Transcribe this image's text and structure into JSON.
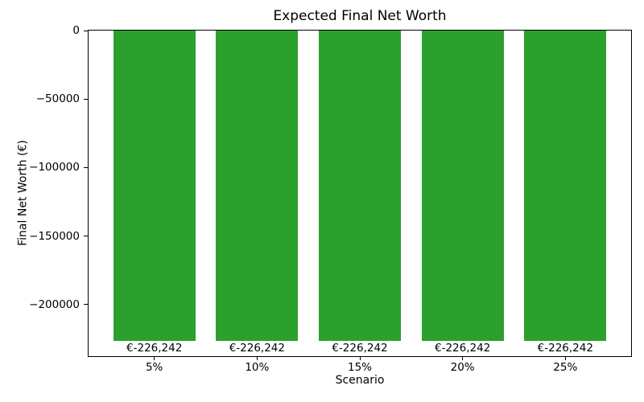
{
  "chart_data": {
    "type": "bar",
    "title": "Expected Final Net Worth",
    "xlabel": "Scenario",
    "ylabel": "Final Net Worth (€)",
    "categories": [
      "5%",
      "10%",
      "15%",
      "20%",
      "25%"
    ],
    "values": [
      -226242,
      -226242,
      -226242,
      -226242,
      -226242
    ],
    "bar_labels": [
      "€-226,242",
      "€-226,242",
      "€-226,242",
      "€-226,242",
      "€-226,242"
    ],
    "bar_color": "#2ca02c",
    "yticks": [
      0,
      -50000,
      -100000,
      -150000,
      -200000
    ],
    "ytick_labels": [
      "0",
      "−50000",
      "−100000",
      "−150000",
      "−200000"
    ],
    "ylim": [
      -237554,
      0
    ],
    "xlim": [
      -0.64,
      4.64
    ],
    "bar_width": 0.8,
    "grid": false,
    "legend_position": "none",
    "text_color": "#000000",
    "background_color": "#ffffff"
  }
}
